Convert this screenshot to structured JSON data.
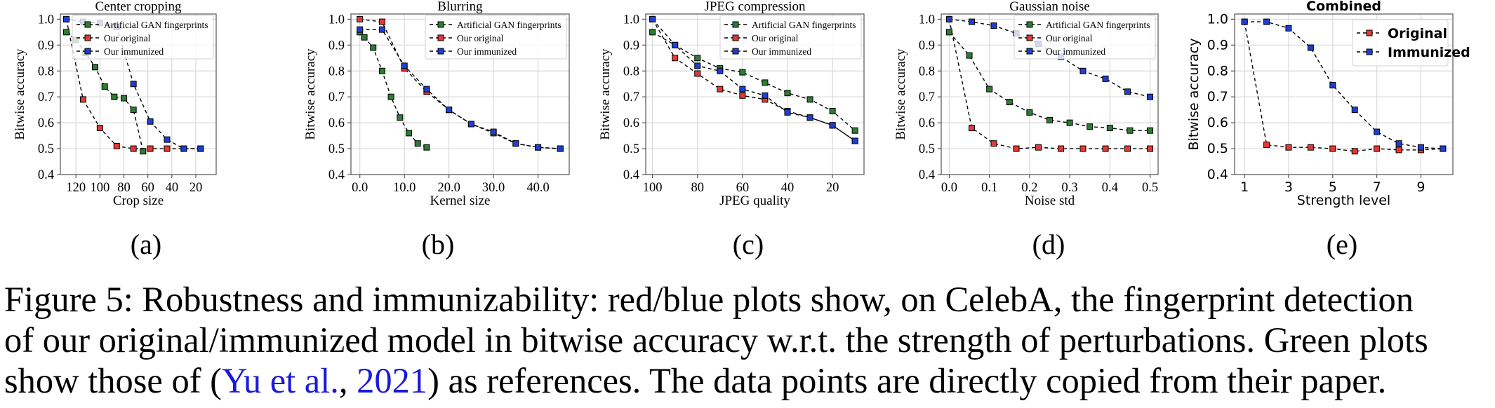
{
  "colors": {
    "green": "#2e7d32",
    "red": "#e53935",
    "blue": "#1f3fd4",
    "grid": "#d9d9d9",
    "axis": "#555555",
    "link": "#1a1ad6"
  },
  "chart_data": [
    {
      "type": "line",
      "title": "Center cropping",
      "sublabel": "(a)",
      "xlabel": "Crop size",
      "ylabel": "Bitwise accuracy",
      "xlim": [
        133,
        3
      ],
      "ylim": [
        0.4,
        1.02
      ],
      "xticks": [
        120,
        100,
        80,
        60,
        40,
        20
      ],
      "xtick_labels": [
        "120",
        "100",
        "80",
        "60",
        "40",
        "20"
      ],
      "yticks": [
        0.4,
        0.5,
        0.6,
        0.7,
        0.8,
        0.9,
        1.0
      ],
      "ytick_labels": [
        "0.4",
        "0.5",
        "0.6",
        "0.7",
        "0.8",
        "0.9",
        "1.0"
      ],
      "legend_position": "top-right",
      "series": [
        {
          "name": "Artificial GAN fingerprints",
          "color": "green",
          "x": [
            128,
            120,
            112,
            104,
            96,
            88,
            80,
            72,
            64
          ],
          "y": [
            0.95,
            0.92,
            0.87,
            0.815,
            0.74,
            0.7,
            0.695,
            0.65,
            0.49
          ]
        },
        {
          "name": "Our original",
          "color": "red",
          "x": [
            128,
            114,
            100,
            86,
            72,
            58,
            44,
            30,
            16
          ],
          "y": [
            1.0,
            0.69,
            0.58,
            0.51,
            0.5,
            0.5,
            0.5,
            0.5,
            0.5
          ]
        },
        {
          "name": "Our immunized",
          "color": "blue",
          "x": [
            128,
            114,
            100,
            86,
            72,
            58,
            44,
            30,
            16
          ],
          "y": [
            1.0,
            0.99,
            0.985,
            0.97,
            0.75,
            0.605,
            0.535,
            0.5,
            0.5
          ]
        }
      ]
    },
    {
      "type": "line",
      "title": "Blurring",
      "sublabel": "(b)",
      "xlabel": "Kernel size",
      "ylabel": "Bitwise accuracy",
      "xlim": [
        -2,
        47
      ],
      "ylim": [
        0.4,
        1.02
      ],
      "xticks": [
        0,
        10,
        20,
        30,
        40
      ],
      "xtick_labels": [
        "0.0",
        "10.0",
        "20.0",
        "30.0",
        "40.0"
      ],
      "yticks": [
        0.4,
        0.5,
        0.6,
        0.7,
        0.8,
        0.9,
        1.0
      ],
      "ytick_labels": [
        "0.4",
        "0.5",
        "0.6",
        "0.7",
        "0.8",
        "0.9",
        "1.0"
      ],
      "legend_position": "top-right",
      "series": [
        {
          "name": "Artificial GAN fingerprints",
          "color": "green",
          "x": [
            0,
            1,
            3,
            5,
            7,
            9,
            11,
            13,
            15
          ],
          "y": [
            0.95,
            0.93,
            0.89,
            0.8,
            0.7,
            0.62,
            0.56,
            0.52,
            0.505
          ]
        },
        {
          "name": "Our original",
          "color": "red",
          "x": [
            0,
            5,
            10,
            15,
            20,
            25,
            30,
            35,
            40,
            45
          ],
          "y": [
            1.0,
            0.99,
            0.81,
            0.72,
            0.65,
            0.595,
            0.56,
            0.52,
            0.505,
            0.5
          ]
        },
        {
          "name": "Our immunized",
          "color": "blue",
          "x": [
            0,
            5,
            10,
            15,
            20,
            25,
            30,
            35,
            40,
            45
          ],
          "y": [
            0.96,
            0.96,
            0.82,
            0.73,
            0.65,
            0.595,
            0.565,
            0.52,
            0.505,
            0.5
          ]
        }
      ]
    },
    {
      "type": "line",
      "title": "JPEG compression",
      "sublabel": "(c)",
      "xlabel": "JPEG quality",
      "ylabel": "Bitwise accuracy",
      "xlim": [
        103,
        6
      ],
      "ylim": [
        0.4,
        1.02
      ],
      "xticks": [
        100,
        80,
        60,
        40,
        20
      ],
      "xtick_labels": [
        "100",
        "80",
        "60",
        "40",
        "20"
      ],
      "yticks": [
        0.4,
        0.5,
        0.6,
        0.7,
        0.8,
        0.9,
        1.0
      ],
      "ytick_labels": [
        "0.4",
        "0.5",
        "0.6",
        "0.7",
        "0.8",
        "0.9",
        "1.0"
      ],
      "legend_position": "top-right",
      "series": [
        {
          "name": "Artificial GAN fingerprints",
          "color": "green",
          "x": [
            100,
            90,
            80,
            70,
            60,
            50,
            40,
            30,
            20,
            10
          ],
          "y": [
            0.95,
            0.9,
            0.85,
            0.81,
            0.795,
            0.755,
            0.715,
            0.69,
            0.645,
            0.57
          ]
        },
        {
          "name": "Our original",
          "color": "red",
          "x": [
            100,
            90,
            80,
            70,
            60,
            50,
            40,
            30,
            20,
            10
          ],
          "y": [
            1.0,
            0.85,
            0.79,
            0.73,
            0.705,
            0.69,
            0.645,
            0.62,
            0.59,
            0.53
          ]
        },
        {
          "name": "Our immunized",
          "color": "blue",
          "x": [
            100,
            90,
            80,
            70,
            60,
            50,
            40,
            30,
            20,
            10
          ],
          "y": [
            1.0,
            0.9,
            0.82,
            0.8,
            0.73,
            0.705,
            0.64,
            0.62,
            0.59,
            0.53
          ]
        }
      ]
    },
    {
      "type": "line",
      "title": "Gaussian noise",
      "sublabel": "(d)",
      "xlabel": "Noise std",
      "ylabel": "Bitwise accuracy",
      "xlim": [
        -0.02,
        0.52
      ],
      "ylim": [
        0.4,
        1.02
      ],
      "xticks": [
        0,
        0.1,
        0.2,
        0.3,
        0.4,
        0.5
      ],
      "xtick_labels": [
        "0.0",
        "0.1",
        "0.2",
        "0.3",
        "0.4",
        "0.5"
      ],
      "yticks": [
        0.4,
        0.5,
        0.6,
        0.7,
        0.8,
        0.9,
        1.0
      ],
      "ytick_labels": [
        "0.4",
        "0.5",
        "0.6",
        "0.7",
        "0.8",
        "0.9",
        "1.0"
      ],
      "legend_position": "top-right",
      "series": [
        {
          "name": "Artificial GAN fingerprints",
          "color": "green",
          "x": [
            0,
            0.05,
            0.1,
            0.15,
            0.2,
            0.25,
            0.3,
            0.35,
            0.4,
            0.45,
            0.5
          ],
          "y": [
            0.95,
            0.86,
            0.73,
            0.68,
            0.64,
            0.61,
            0.6,
            0.585,
            0.58,
            0.57,
            0.57
          ]
        },
        {
          "name": "Our original",
          "color": "red",
          "x": [
            0,
            0.056,
            0.111,
            0.167,
            0.222,
            0.278,
            0.333,
            0.389,
            0.444,
            0.5
          ],
          "y": [
            1.0,
            0.58,
            0.52,
            0.5,
            0.505,
            0.5,
            0.5,
            0.5,
            0.5,
            0.5
          ]
        },
        {
          "name": "Our immunized",
          "color": "blue",
          "x": [
            0,
            0.056,
            0.111,
            0.167,
            0.222,
            0.278,
            0.333,
            0.389,
            0.444,
            0.5
          ],
          "y": [
            1.0,
            0.99,
            0.975,
            0.945,
            0.905,
            0.855,
            0.8,
            0.77,
            0.72,
            0.7
          ]
        }
      ]
    },
    {
      "type": "line",
      "title": "Combined",
      "sublabel": "(e)",
      "xlabel": "Strength level",
      "ylabel": "Bitwise accuracy",
      "xlim": [
        0.55,
        10.45
      ],
      "ylim": [
        0.4,
        1.02
      ],
      "xticks": [
        1,
        3,
        5,
        7,
        9
      ],
      "xtick_labels": [
        "1",
        "3",
        "5",
        "7",
        "9"
      ],
      "yticks": [
        0.4,
        0.5,
        0.6,
        0.7,
        0.8,
        0.9,
        1.0
      ],
      "ytick_labels": [
        "0.4",
        "0.5",
        "0.6",
        "0.7",
        "0.8",
        "0.9",
        "1.0"
      ],
      "legend_position": "top-right",
      "series": [
        {
          "name": "Original",
          "color": "red",
          "x": [
            1,
            2,
            3,
            4,
            5,
            6,
            7,
            8,
            9,
            10
          ],
          "y": [
            0.99,
            0.515,
            0.505,
            0.505,
            0.5,
            0.49,
            0.5,
            0.495,
            0.495,
            0.5
          ]
        },
        {
          "name": "Immunized",
          "color": "blue",
          "x": [
            1,
            2,
            3,
            4,
            5,
            6,
            7,
            8,
            9,
            10
          ],
          "y": [
            0.99,
            0.99,
            0.965,
            0.89,
            0.745,
            0.65,
            0.565,
            0.52,
            0.505,
            0.5
          ]
        }
      ]
    }
  ],
  "caption": {
    "line1": "Figure 5: Robustness and immunizability: red/blue plots show, on CelebA, the fingerprint detection",
    "line2": "of our original/immunized model in bitwise accuracy w.r.t. the strength of perturbations. Green plots",
    "line3_pre": "show those of (",
    "cite_author": "Yu et al.",
    "cite_sep": ", ",
    "cite_year": "2021",
    "line3_post": ") as references. The data points are directly copied from their paper."
  }
}
